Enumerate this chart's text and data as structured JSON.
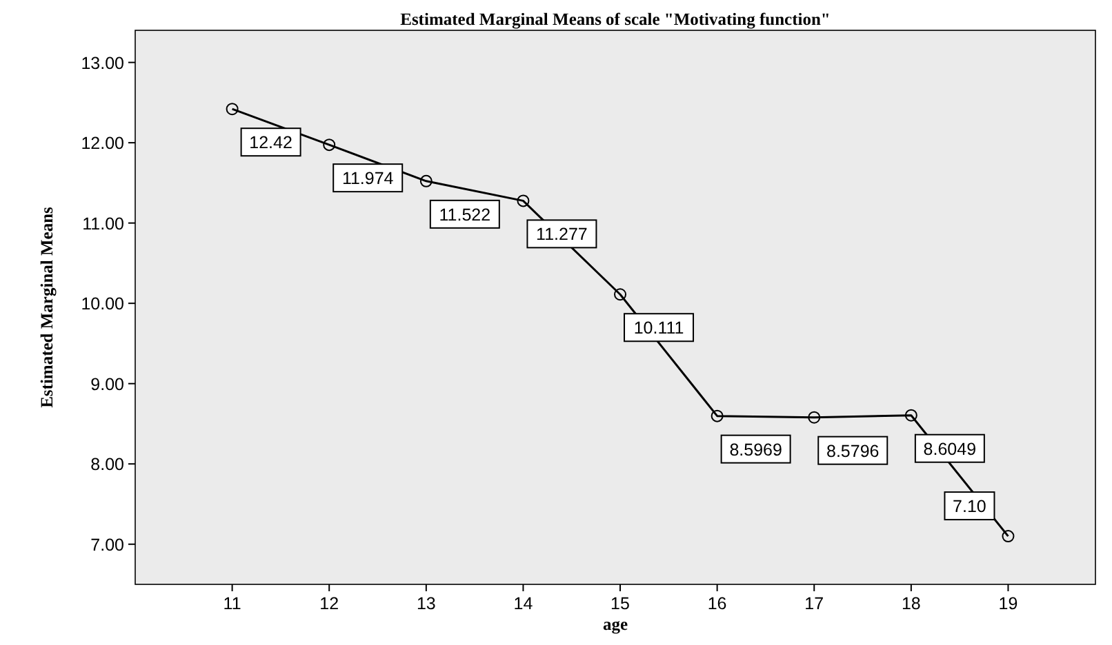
{
  "chart_data": {
    "type": "line",
    "title": "Estimated Marginal Means of scale \"Motivating function\"",
    "xlabel": "age",
    "ylabel": "Estimated Marginal Means",
    "x": [
      11,
      12,
      13,
      14,
      15,
      16,
      17,
      18,
      19
    ],
    "series": [
      {
        "color": "#000000",
        "values": [
          12.42,
          11.974,
          11.522,
          11.277,
          10.111,
          8.5969,
          8.5796,
          8.6049,
          7.1
        ],
        "value_labels": [
          "12.42",
          "11.974",
          "11.522",
          "11.277",
          "10.111",
          "8.5969",
          "8.5796",
          "8.6049",
          "7.10"
        ]
      }
    ],
    "xlim": [
      10,
      19.9
    ],
    "xticks": [
      11,
      12,
      13,
      14,
      15,
      16,
      17,
      18,
      19
    ],
    "ylim": [
      6.5,
      13.4
    ],
    "yticks": [
      {
        "value": 7,
        "label": "7.00"
      },
      {
        "value": 8,
        "label": "8.00"
      },
      {
        "value": 9,
        "label": "9.00"
      },
      {
        "value": 10,
        "label": "10.00"
      },
      {
        "value": 11,
        "label": "11.00"
      },
      {
        "value": 12,
        "label": "12.00"
      },
      {
        "value": 13,
        "label": "13.00"
      }
    ],
    "grid": false,
    "marker": "circle",
    "line_style": "solid"
  }
}
